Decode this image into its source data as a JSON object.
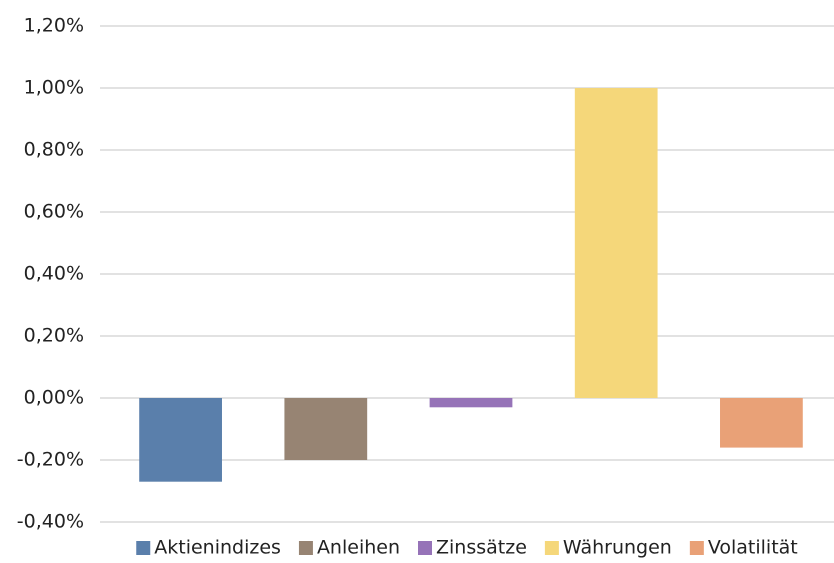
{
  "chart_data": {
    "type": "bar",
    "categories": [
      "Aktienindizes",
      "Anleihen",
      "Zinssätze",
      "Währungen",
      "Volatilität"
    ],
    "values": [
      -0.27,
      -0.2,
      -0.03,
      1.0,
      -0.16
    ],
    "colors": [
      "#5a7fab",
      "#978473",
      "#9673b8",
      "#f5d77a",
      "#e9a177"
    ],
    "ylim": [
      -0.4,
      1.2
    ],
    "yticks": [
      {
        "value": -0.4,
        "label": "-0,40%"
      },
      {
        "value": -0.2,
        "label": "-0,20%"
      },
      {
        "value": 0,
        "label": "0,00%"
      },
      {
        "value": 0.2,
        "label": "0,20%"
      },
      {
        "value": 0.4,
        "label": "0,40%"
      },
      {
        "value": 0.6,
        "label": "0,60%"
      },
      {
        "value": 0.8,
        "label": "0,80%"
      },
      {
        "value": 1.0,
        "label": "1,00%"
      },
      {
        "value": 1.2,
        "label": "1,20%"
      }
    ],
    "grid": true,
    "legend": "bottom"
  }
}
